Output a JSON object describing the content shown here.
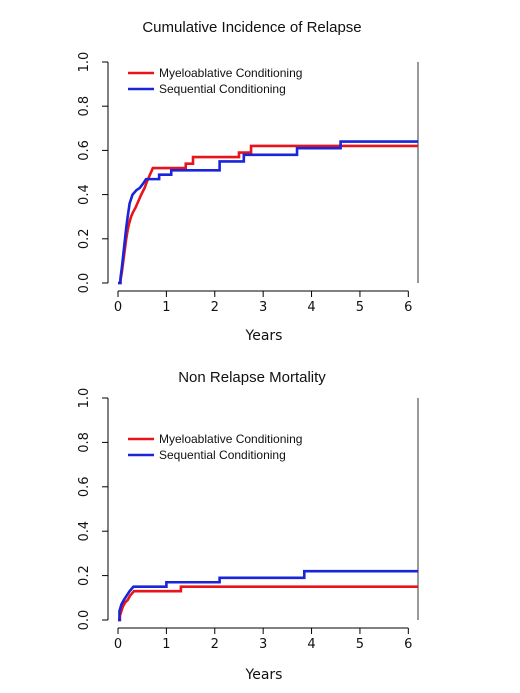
{
  "chart_data": [
    {
      "type": "line",
      "step": true,
      "title": "Cumulative Incidence of Relapse",
      "xlabel": "Years",
      "ylabel": "",
      "xlim": [
        0,
        6.2
      ],
      "ylim": [
        0,
        1.0
      ],
      "xticks": [
        "0",
        "1",
        "2",
        "3",
        "4",
        "5",
        "6"
      ],
      "yticks": [
        "0.0",
        "0.2",
        "0.4",
        "0.6",
        "0.8",
        "1.0"
      ],
      "legend_position": "top-left",
      "grid": false,
      "series": [
        {
          "name": "Myeloablative Conditioning",
          "color": "#e8141c",
          "points": [
            [
              0,
              0
            ],
            [
              0.05,
              0
            ],
            [
              0.05,
              0.01
            ],
            [
              0.08,
              0.05
            ],
            [
              0.11,
              0.1
            ],
            [
              0.14,
              0.15
            ],
            [
              0.17,
              0.2
            ],
            [
              0.2,
              0.24
            ],
            [
              0.23,
              0.27
            ],
            [
              0.27,
              0.3
            ],
            [
              0.31,
              0.32
            ],
            [
              0.36,
              0.34
            ],
            [
              0.42,
              0.37
            ],
            [
              0.48,
              0.4
            ],
            [
              0.55,
              0.43
            ],
            [
              0.6,
              0.46
            ],
            [
              0.66,
              0.49
            ],
            [
              0.72,
              0.52
            ],
            [
              1.4,
              0.52
            ],
            [
              1.4,
              0.54
            ],
            [
              1.55,
              0.54
            ],
            [
              1.55,
              0.57
            ],
            [
              2.5,
              0.57
            ],
            [
              2.5,
              0.59
            ],
            [
              2.75,
              0.59
            ],
            [
              2.75,
              0.62
            ],
            [
              6.2,
              0.62
            ]
          ]
        },
        {
          "name": "Sequential Conditioning",
          "color": "#1a24d8",
          "points": [
            [
              0,
              0
            ],
            [
              0.05,
              0
            ],
            [
              0.05,
              0.02
            ],
            [
              0.08,
              0.07
            ],
            [
              0.11,
              0.13
            ],
            [
              0.14,
              0.19
            ],
            [
              0.17,
              0.25
            ],
            [
              0.2,
              0.3
            ],
            [
              0.24,
              0.36
            ],
            [
              0.3,
              0.4
            ],
            [
              0.38,
              0.42
            ],
            [
              0.45,
              0.43
            ],
            [
              0.52,
              0.45
            ],
            [
              0.58,
              0.47
            ],
            [
              0.85,
              0.47
            ],
            [
              0.85,
              0.49
            ],
            [
              1.1,
              0.49
            ],
            [
              1.1,
              0.51
            ],
            [
              2.1,
              0.51
            ],
            [
              2.1,
              0.55
            ],
            [
              2.6,
              0.55
            ],
            [
              2.6,
              0.58
            ],
            [
              3.7,
              0.58
            ],
            [
              3.7,
              0.61
            ],
            [
              4.6,
              0.61
            ],
            [
              4.6,
              0.64
            ],
            [
              6.2,
              0.64
            ]
          ]
        }
      ]
    },
    {
      "type": "line",
      "step": true,
      "title": "Non Relapse Mortality",
      "xlabel": "Years",
      "ylabel": "",
      "xlim": [
        0,
        6.2
      ],
      "ylim": [
        0,
        1.0
      ],
      "xticks": [
        "0",
        "1",
        "2",
        "3",
        "4",
        "5",
        "6"
      ],
      "yticks": [
        "0.0",
        "0.2",
        "0.4",
        "0.6",
        "0.8",
        "1.0"
      ],
      "legend_position": "top-left",
      "grid": false,
      "series": [
        {
          "name": "Myeloablative Conditioning",
          "color": "#e8141c",
          "points": [
            [
              0,
              0
            ],
            [
              0.04,
              0
            ],
            [
              0.04,
              0.02
            ],
            [
              0.07,
              0.04
            ],
            [
              0.1,
              0.06
            ],
            [
              0.15,
              0.08
            ],
            [
              0.2,
              0.09
            ],
            [
              0.25,
              0.11
            ],
            [
              0.33,
              0.13
            ],
            [
              1.3,
              0.13
            ],
            [
              1.3,
              0.15
            ],
            [
              6.2,
              0.15
            ]
          ]
        },
        {
          "name": "Sequential Conditioning",
          "color": "#1a24d8",
          "points": [
            [
              0,
              0
            ],
            [
              0.03,
              0
            ],
            [
              0.03,
              0.04
            ],
            [
              0.07,
              0.07
            ],
            [
              0.12,
              0.09
            ],
            [
              0.18,
              0.11
            ],
            [
              0.24,
              0.13
            ],
            [
              0.32,
              0.15
            ],
            [
              1.0,
              0.15
            ],
            [
              1.0,
              0.17
            ],
            [
              2.1,
              0.17
            ],
            [
              2.1,
              0.19
            ],
            [
              3.85,
              0.19
            ],
            [
              3.85,
              0.22
            ],
            [
              6.2,
              0.22
            ]
          ]
        }
      ]
    }
  ]
}
